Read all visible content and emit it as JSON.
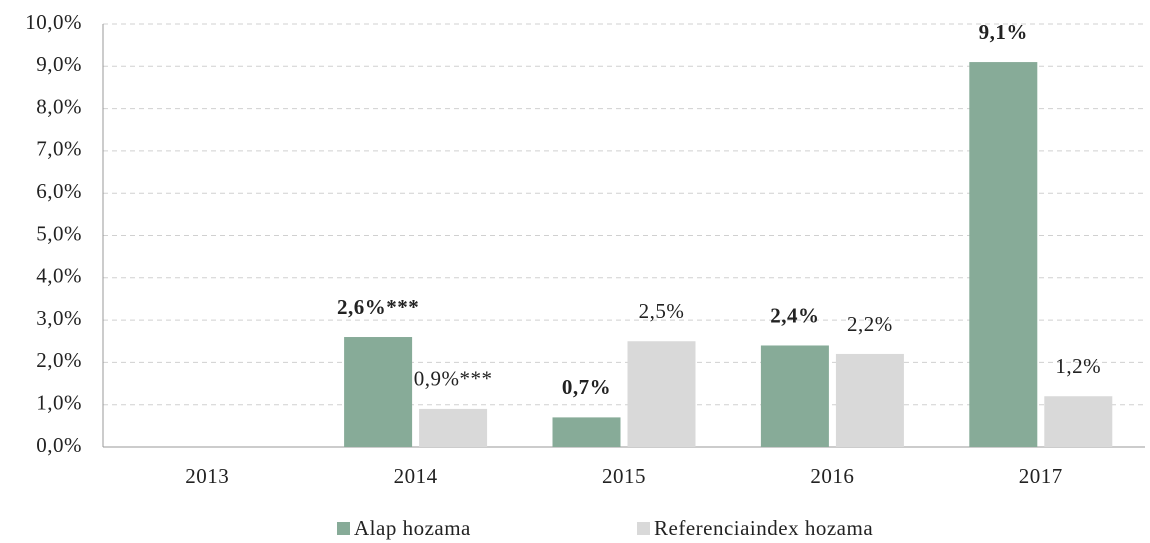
{
  "chart_data": {
    "type": "bar",
    "categories": [
      "2013",
      "2014",
      "2015",
      "2016",
      "2017"
    ],
    "series": [
      {
        "name": "Alap hozama",
        "color": "#87ab98",
        "values": [
          null,
          2.6,
          0.7,
          2.4,
          9.1
        ],
        "value_labels": [
          null,
          "2,6%***",
          "0,7%",
          "2,4%",
          "9,1%"
        ]
      },
      {
        "name": "Referenciaindex hozama",
        "color": "#d9d9d9",
        "values": [
          null,
          0.9,
          2.5,
          2.2,
          1.2
        ],
        "value_labels": [
          null,
          "0,9%***",
          "2,5%",
          "2,2%",
          "1,2%"
        ]
      }
    ],
    "ylim": [
      0,
      10
    ],
    "yticks": [
      {
        "value": 0,
        "label": "0,0%"
      },
      {
        "value": 1,
        "label": "1,0%"
      },
      {
        "value": 2,
        "label": "2,0%"
      },
      {
        "value": 3,
        "label": "3,0%"
      },
      {
        "value": 4,
        "label": "4,0%"
      },
      {
        "value": 5,
        "label": "5,0%"
      },
      {
        "value": 6,
        "label": "6,0%"
      },
      {
        "value": 7,
        "label": "7,0%"
      },
      {
        "value": 8,
        "label": "8,0%"
      },
      {
        "value": 9,
        "label": "9,0%"
      },
      {
        "value": 10,
        "label": "10,0%"
      }
    ],
    "grid": true,
    "legend": "bottom"
  }
}
